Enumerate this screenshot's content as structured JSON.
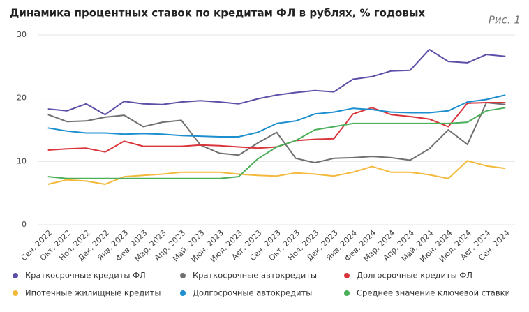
{
  "chart_data": {
    "type": "line",
    "title": "Динамика процентных ставок по кредитам ФЛ в рублях, % годовых",
    "annotation": "Рис. 1",
    "categories": [
      "Сен. 2022",
      "Окт. 2022",
      "Ноя. 2022",
      "Дек. 2022",
      "Янв. 2023",
      "Фев. 2023",
      "Мар. 2023",
      "Апр. 2023",
      "Май. 2023",
      "Июн. 2023",
      "Июл. 2023",
      "Авг. 2023",
      "Сен. 2023",
      "Окт. 2023",
      "Ноя. 2023",
      "Дек. 2023",
      "Янв. 2024",
      "Фев. 2024",
      "Мар. 2024",
      "Апр. 2024",
      "Май. 2024",
      "Июн. 2024",
      "Июл. 2024",
      "Авг. 2024",
      "Сен. 2024"
    ],
    "series": [
      {
        "name": "Краткосрочные кредиты ФЛ",
        "color": "#5b4fa8",
        "values": [
          18.3,
          18.0,
          19.1,
          17.4,
          19.5,
          19.1,
          19.0,
          19.4,
          19.6,
          19.4,
          19.1,
          19.9,
          20.5,
          20.9,
          21.2,
          21.0,
          23.0,
          23.4,
          24.3,
          24.4,
          27.7,
          25.8,
          25.6,
          26.9,
          26.6
        ]
      },
      {
        "name": "Краткосрочные автокредиты",
        "color": "#707070",
        "values": [
          17.4,
          16.3,
          16.4,
          17.0,
          17.3,
          15.5,
          16.2,
          16.5,
          12.6,
          11.3,
          11.0,
          12.9,
          14.6,
          10.5,
          9.8,
          10.5,
          10.6,
          10.8,
          10.6,
          10.2,
          12.0,
          15.0,
          12.7,
          19.3,
          19.0
        ]
      },
      {
        "name": "Долгосрочные кредиты ФЛ",
        "color": "#d9343a",
        "values": [
          11.8,
          12.0,
          12.1,
          11.5,
          13.2,
          12.4,
          12.4,
          12.4,
          12.6,
          12.5,
          12.3,
          12.1,
          12.3,
          13.3,
          13.5,
          13.6,
          17.5,
          18.5,
          17.4,
          17.1,
          16.7,
          15.5,
          19.2,
          19.3,
          19.3
        ]
      },
      {
        "name": "Ипотечные жилищные кредиты",
        "color": "#f2b93b",
        "values": [
          6.4,
          7.1,
          6.9,
          6.4,
          7.6,
          7.8,
          8.0,
          8.3,
          8.3,
          8.3,
          8.0,
          7.8,
          7.7,
          8.2,
          8.0,
          7.7,
          8.3,
          9.2,
          8.3,
          8.3,
          7.9,
          7.3,
          10.1,
          9.3,
          8.9
        ]
      },
      {
        "name": "Долгосрочные автокредиты",
        "color": "#1d8fcf",
        "values": [
          15.3,
          14.8,
          14.5,
          14.5,
          14.3,
          14.4,
          14.3,
          14.1,
          14.0,
          13.9,
          13.9,
          14.6,
          16.0,
          16.4,
          17.5,
          17.8,
          18.4,
          18.2,
          17.8,
          17.7,
          17.7,
          18.0,
          19.4,
          19.8,
          20.5
        ]
      },
      {
        "name": "Среднее значение ключевой ставки",
        "color": "#4caf5a",
        "values": [
          7.6,
          7.3,
          7.3,
          7.3,
          7.3,
          7.3,
          7.3,
          7.3,
          7.3,
          7.3,
          7.6,
          10.4,
          12.3,
          13.3,
          15.0,
          15.5,
          16,
          16,
          16,
          16,
          16,
          16,
          16.2,
          18,
          18.5
        ]
      }
    ],
    "ylim": [
      0,
      30
    ],
    "yticks": [
      0,
      10,
      20,
      30
    ],
    "grid": true
  }
}
